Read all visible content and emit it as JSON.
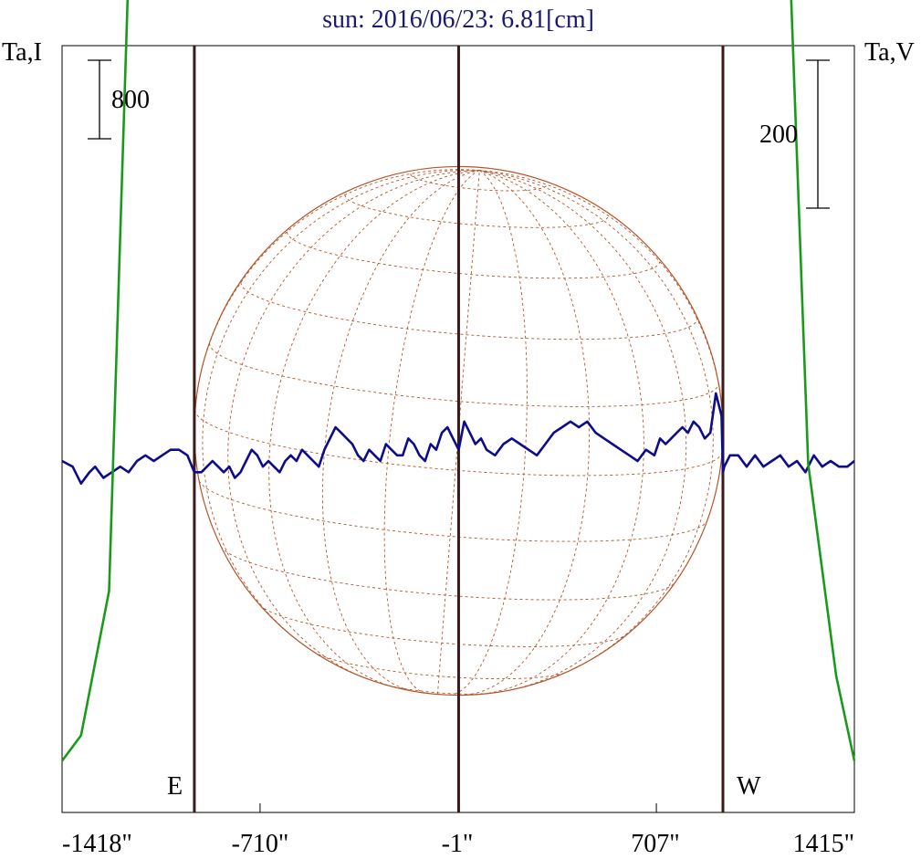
{
  "chart_data": {
    "type": "line",
    "title": "sun: 2016/06/23: 6.81[cm]",
    "ylabel_left": "Ta,I",
    "ylabel_right": "Ta,V",
    "scale_left": "800",
    "scale_right": "200",
    "x_ticks": [
      "-1418\"",
      "-710\"",
      "-1\"",
      "707\"",
      "1415\""
    ],
    "x_tick_values": [
      -1418,
      -710,
      -1,
      707,
      1415
    ],
    "xlim": [
      -1418,
      1415
    ],
    "limb_labels": [
      "E",
      "W"
    ],
    "limb_positions": [
      -945,
      945
    ],
    "center_line": 0,
    "grid": false,
    "colors": {
      "intensity": "#1a9a1a",
      "polarization": "#0d0d8c",
      "disk": "#b5552a",
      "markers": "#3a1a1a"
    },
    "series": [
      {
        "key": "I",
        "x": [
          -1418,
          -1350,
          -1250,
          -1150,
          -1100,
          -1050,
          -1000,
          -975,
          -960,
          -950,
          -940,
          -925,
          -910,
          -890,
          -870,
          -850,
          -820,
          -800,
          -770,
          -750,
          -720,
          -700,
          -650,
          -600,
          -560,
          -520,
          -500,
          -470,
          -440,
          -400,
          -370,
          -330,
          -300,
          -260,
          -230,
          -200,
          -150,
          -100,
          -60,
          -30,
          -10,
          0,
          20,
          40,
          70,
          100,
          150,
          200,
          260,
          300,
          350,
          380,
          420,
          460,
          500,
          540,
          560,
          580,
          620,
          670,
          690,
          720,
          730,
          750,
          780,
          800,
          840,
          870,
          900,
          910,
          925,
          940,
          950,
          965,
          980,
          1000,
          1020,
          1050,
          1100,
          1150,
          1250,
          1350,
          1415
        ],
        "y": [
          5,
          8,
          25,
          130,
          300,
          700,
          1700,
          2550,
          3200,
          3500,
          3680,
          3600,
          3350,
          3150,
          3100,
          3300,
          3550,
          3590,
          3530,
          3500,
          3560,
          3580,
          3650,
          3700,
          3800,
          3900,
          3920,
          3990,
          4080,
          4150,
          4100,
          4000,
          3980,
          4070,
          4120,
          4150,
          4270,
          4450,
          4850,
          5050,
          5070,
          4950,
          4570,
          4450,
          4400,
          4330,
          4330,
          4300,
          4320,
          4380,
          4380,
          4450,
          4400,
          4470,
          4440,
          4200,
          4000,
          3800,
          3720,
          3800,
          3770,
          3500,
          3200,
          3170,
          3200,
          3350,
          3330,
          3370,
          3800,
          4200,
          5300,
          5550,
          5300,
          4300,
          3300,
          2400,
          1500,
          700,
          280,
          130,
          40,
          15,
          5
        ]
      },
      {
        "key": "V",
        "x": [
          -1418,
          -1380,
          -1350,
          -1320,
          -1300,
          -1270,
          -1240,
          -1210,
          -1180,
          -1150,
          -1120,
          -1090,
          -1060,
          -1030,
          -1000,
          -970,
          -945,
          -920,
          -900,
          -880,
          -860,
          -840,
          -820,
          -800,
          -780,
          -760,
          -740,
          -720,
          -700,
          -680,
          -660,
          -640,
          -620,
          -600,
          -580,
          -560,
          -540,
          -520,
          -500,
          -480,
          -460,
          -440,
          -420,
          -400,
          -380,
          -360,
          -340,
          -320,
          -300,
          -280,
          -260,
          -240,
          -220,
          -200,
          -180,
          -160,
          -140,
          -120,
          -100,
          -80,
          -60,
          -40,
          -20,
          0,
          20,
          40,
          60,
          80,
          100,
          130,
          160,
          190,
          220,
          250,
          280,
          310,
          340,
          370,
          400,
          430,
          460,
          490,
          520,
          550,
          580,
          610,
          640,
          670,
          700,
          720,
          740,
          760,
          780,
          800,
          820,
          840,
          860,
          880,
          900,
          920,
          940,
          945,
          950,
          970,
          1000,
          1030,
          1060,
          1090,
          1120,
          1150,
          1180,
          1210,
          1240,
          1270,
          1300,
          1330,
          1360,
          1390,
          1415
        ],
        "y": [
          0,
          -5,
          -20,
          -10,
          -5,
          -15,
          -10,
          -5,
          -10,
          0,
          5,
          0,
          5,
          10,
          10,
          5,
          -10,
          -10,
          -5,
          0,
          -5,
          -10,
          -5,
          -15,
          -10,
          0,
          10,
          5,
          -5,
          0,
          -5,
          -10,
          0,
          5,
          0,
          10,
          5,
          0,
          -5,
          10,
          20,
          30,
          25,
          20,
          15,
          5,
          0,
          10,
          5,
          0,
          15,
          10,
          5,
          5,
          20,
          15,
          5,
          0,
          15,
          10,
          25,
          30,
          20,
          10,
          35,
          25,
          15,
          20,
          10,
          5,
          15,
          20,
          15,
          10,
          5,
          15,
          25,
          30,
          35,
          30,
          35,
          25,
          20,
          15,
          10,
          5,
          0,
          10,
          5,
          20,
          15,
          20,
          25,
          30,
          25,
          35,
          30,
          20,
          25,
          60,
          40,
          -10,
          -5,
          5,
          5,
          -5,
          5,
          -5,
          0,
          5,
          -5,
          0,
          -10,
          5,
          -5,
          0,
          -5,
          -5,
          0
        ]
      }
    ]
  }
}
